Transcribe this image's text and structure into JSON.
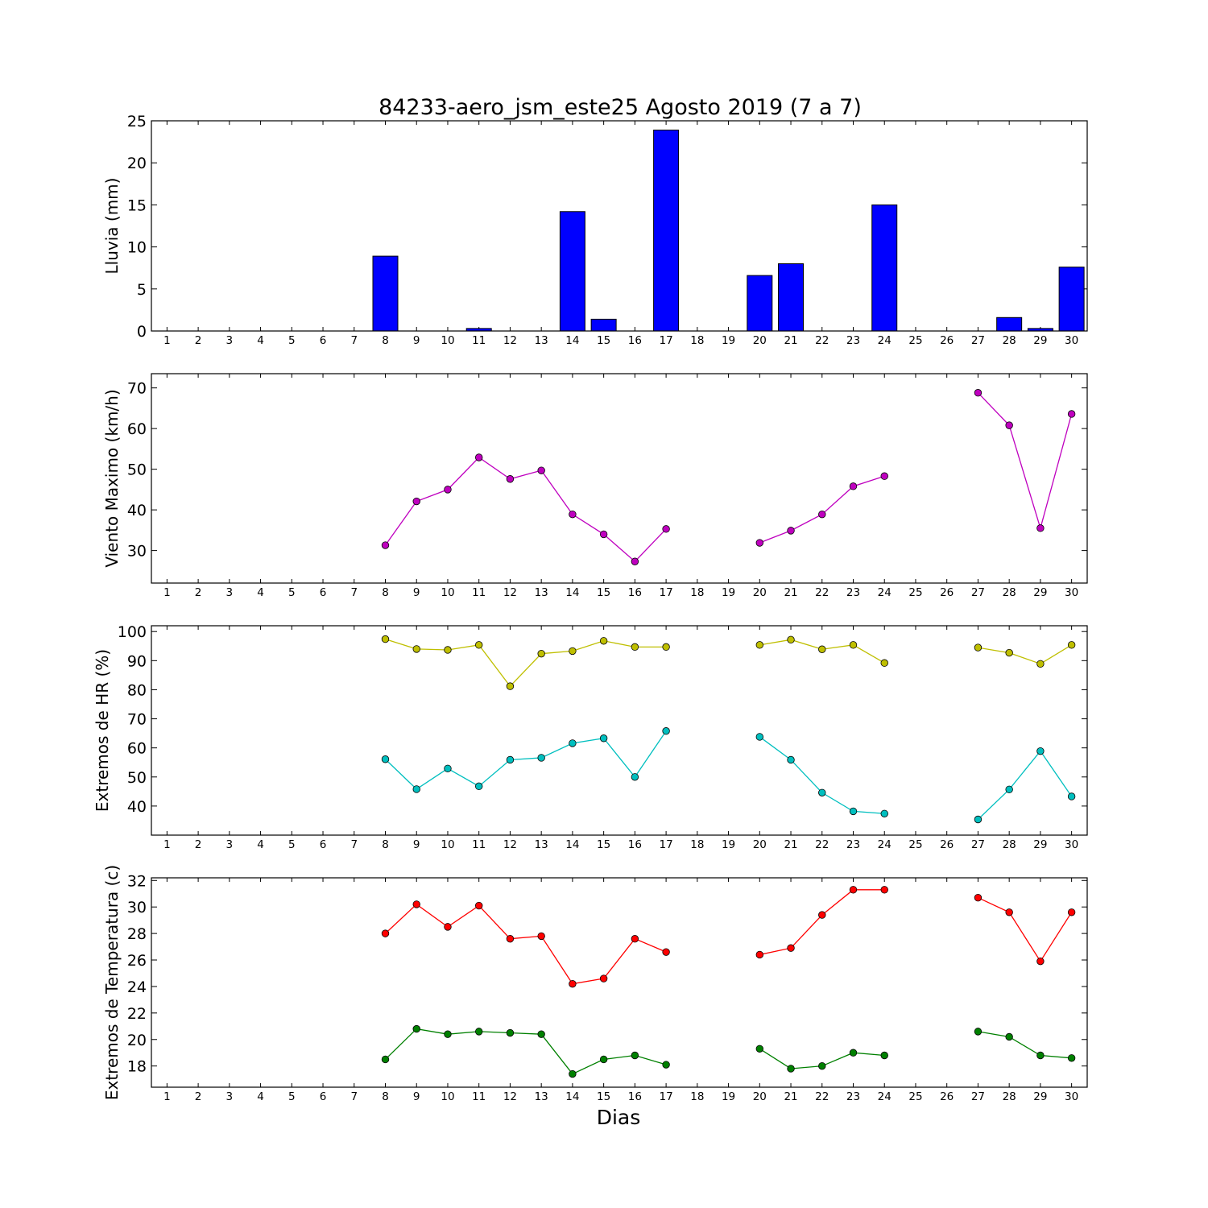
{
  "chart_data": {
    "title": "84233-aero_jsm_este25 Agosto 2019  (7 a 7)",
    "xlabel": "Dias",
    "days": [
      "1",
      "2",
      "3",
      "4",
      "5",
      "6",
      "7",
      "8",
      "9",
      "10",
      "11",
      "12",
      "13",
      "14",
      "15",
      "16",
      "17",
      "18",
      "19",
      "20",
      "21",
      "22",
      "23",
      "24",
      "25",
      "26",
      "27",
      "28",
      "29",
      "30"
    ],
    "panels": [
      {
        "type": "bar",
        "ylabel": "Lluvia (mm)",
        "ylim": [
          0,
          25
        ],
        "yticks": [
          0,
          5,
          10,
          15,
          20,
          25
        ],
        "series": [
          {
            "color": "#0000ff",
            "values": [
              0,
              0,
              0,
              0,
              0,
              0,
              0,
              8.9,
              0,
              0,
              0.3,
              0,
              0,
              14.2,
              1.4,
              0,
              23.9,
              0,
              0,
              6.6,
              8.0,
              0,
              0,
              15.0,
              0,
              0,
              0,
              1.6,
              0.3,
              7.6
            ]
          }
        ]
      },
      {
        "type": "line",
        "ylabel": "Viento Maximo (km/h)",
        "ylim": [
          22,
          73.5
        ],
        "yticks": [
          30,
          40,
          50,
          60,
          70
        ],
        "series": [
          {
            "color": "#bf00bf",
            "values": [
              null,
              null,
              null,
              null,
              null,
              null,
              null,
              31.3,
              42.1,
              45.0,
              52.9,
              47.6,
              49.7,
              38.9,
              34.0,
              27.3,
              35.3,
              null,
              null,
              31.9,
              34.9,
              38.9,
              45.8,
              48.3,
              null,
              null,
              68.8,
              60.8,
              35.5,
              63.6
            ]
          }
        ]
      },
      {
        "type": "line",
        "ylabel": "Extremos de HR (%)",
        "ylim": [
          30,
          102
        ],
        "yticks": [
          40,
          50,
          60,
          70,
          80,
          90,
          100
        ],
        "series": [
          {
            "color": "#bfbf00",
            "values": [
              null,
              null,
              null,
              null,
              null,
              null,
              null,
              97.4,
              94.0,
              93.7,
              95.4,
              81.2,
              92.4,
              93.3,
              96.8,
              94.7,
              94.7,
              null,
              null,
              95.4,
              97.2,
              93.9,
              95.4,
              89.2,
              null,
              null,
              94.5,
              92.7,
              88.9,
              95.4
            ]
          },
          {
            "color": "#00bfbf",
            "values": [
              null,
              null,
              null,
              null,
              null,
              null,
              null,
              56.1,
              45.8,
              52.9,
              46.8,
              55.9,
              56.6,
              61.6,
              63.3,
              50.0,
              65.8,
              null,
              null,
              63.8,
              55.9,
              44.6,
              38.2,
              37.4,
              null,
              null,
              35.4,
              45.7,
              58.9,
              43.3
            ]
          }
        ]
      },
      {
        "type": "line",
        "ylabel": "Extremos de Temperatura (c)",
        "ylim": [
          16.4,
          32.2
        ],
        "yticks": [
          18,
          20,
          22,
          24,
          26,
          28,
          30,
          32
        ],
        "series": [
          {
            "color": "#ff0000",
            "values": [
              null,
              null,
              null,
              null,
              null,
              null,
              null,
              28.0,
              30.2,
              28.5,
              30.1,
              27.6,
              27.8,
              24.2,
              24.6,
              27.6,
              26.6,
              null,
              null,
              26.4,
              26.9,
              29.4,
              31.3,
              31.3,
              null,
              null,
              30.7,
              29.6,
              25.9,
              29.6
            ]
          },
          {
            "color": "#008000",
            "values": [
              null,
              null,
              null,
              null,
              null,
              null,
              null,
              18.5,
              20.8,
              20.4,
              20.6,
              20.5,
              20.4,
              17.4,
              18.5,
              18.8,
              18.1,
              null,
              null,
              19.3,
              17.8,
              18.0,
              19.0,
              18.8,
              null,
              null,
              20.6,
              20.2,
              18.8,
              18.6
            ]
          }
        ]
      }
    ]
  }
}
